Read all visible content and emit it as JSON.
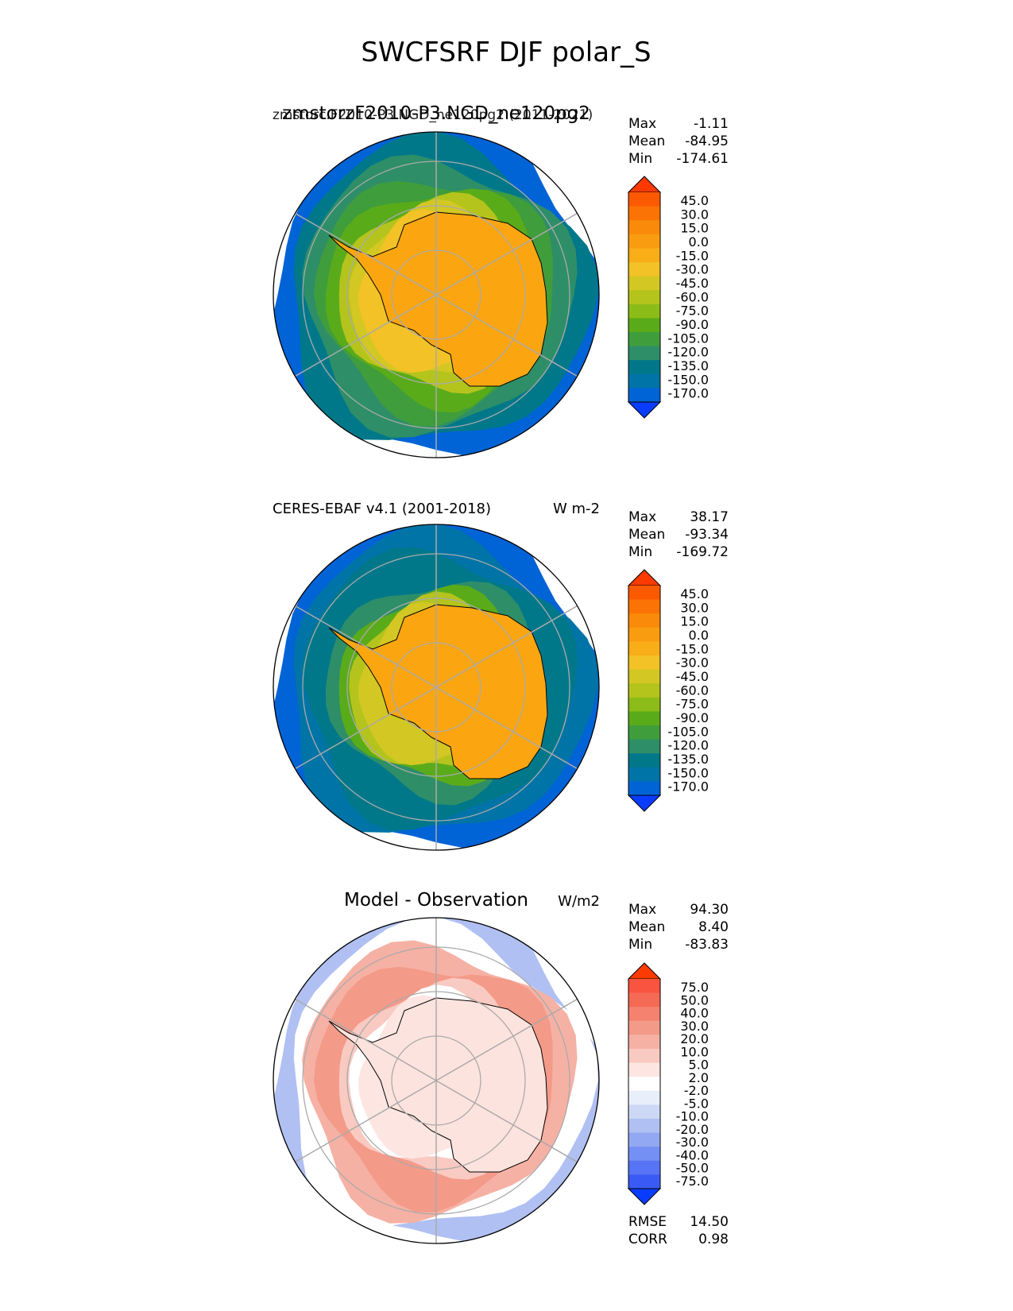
{
  "figure": {
    "title": "SWCFSRF DJF polar_S"
  },
  "palettes": {
    "abs": [
      "#0a3cff",
      "#0063d6",
      "#0074a6",
      "#00788a",
      "#2e8e68",
      "#3f9d3c",
      "#5aab1a",
      "#8cbc18",
      "#b4c41c",
      "#d3c723",
      "#f2c226",
      "#f9ad16",
      "#f99c10",
      "#fa8a0a",
      "#fb7305",
      "#fb5a03",
      "#fc3a01"
    ],
    "diff": [
      "#0a3cff",
      "#3a5af5",
      "#5774f5",
      "#7590f4",
      "#93a8f2",
      "#b0c0f3",
      "#cdd8f6",
      "#e8eefa",
      "#ffffff",
      "#fde6e2",
      "#f9cac1",
      "#f6b1a5",
      "#f49a89",
      "#f4826e",
      "#f56a55",
      "#f8543f",
      "#fc3a01"
    ],
    "land": "#fba611"
  },
  "chart_data": [
    {
      "type": "heatmap",
      "title": "zmstorzF2010-P3.NGD_ne120pg2",
      "title_right": "zmstorc.F2010-P3.NGD_ne120pg2 (2011-2021)",
      "stats": {
        "max_label": "Max",
        "max": "-1.11",
        "mean_label": "Mean",
        "mean": "-84.95",
        "min_label": "Min",
        "min": "-174.61"
      },
      "colorbar_levels": [
        "45.0",
        "30.0",
        "15.0",
        "0.0",
        "-15.0",
        "-30.0",
        "-45.0",
        "-60.0",
        "-75.0",
        "-90.0",
        "-105.0",
        "-120.0",
        "-135.0",
        "-150.0",
        "-170.0"
      ],
      "palette": "abs",
      "zone_levels": [
        1,
        3,
        4,
        5,
        6,
        8,
        9,
        10
      ]
    },
    {
      "type": "heatmap",
      "title": "CERES-EBAF v4.1 (2001-2018)",
      "units": "W m-2",
      "stats": {
        "max_label": "Max",
        "max": "38.17",
        "mean_label": "Mean",
        "mean": "-93.34",
        "min_label": "Min",
        "min": "-169.72"
      },
      "colorbar_levels": [
        "45.0",
        "30.0",
        "15.0",
        "0.0",
        "-15.0",
        "-30.0",
        "-45.0",
        "-60.0",
        "-75.0",
        "-90.0",
        "-105.0",
        "-120.0",
        "-135.0",
        "-150.0",
        "-170.0"
      ],
      "palette": "abs",
      "zone_levels": [
        1,
        2,
        3,
        3,
        4,
        6,
        8,
        9
      ]
    },
    {
      "type": "heatmap",
      "title": "Model - Observation",
      "units": "W/m2",
      "stats": {
        "max_label": "Max",
        "max": "94.30",
        "mean_label": "Mean",
        "mean": "8.40",
        "min_label": "Min",
        "min": "-83.83"
      },
      "colorbar_levels": [
        "75.0",
        "50.0",
        "40.0",
        "30.0",
        "20.0",
        "10.0",
        "5.0",
        "2.0",
        "-2.0",
        "-5.0",
        "-10.0",
        "-20.0",
        "-30.0",
        "-40.0",
        "-50.0",
        "-75.0"
      ],
      "palette": "diff",
      "zone_levels": [
        5,
        8,
        11,
        12,
        12,
        10,
        8,
        9
      ],
      "rmse_label": "RMSE",
      "rmse": "14.50",
      "corr_label": "CORR",
      "corr": "0.98"
    }
  ]
}
